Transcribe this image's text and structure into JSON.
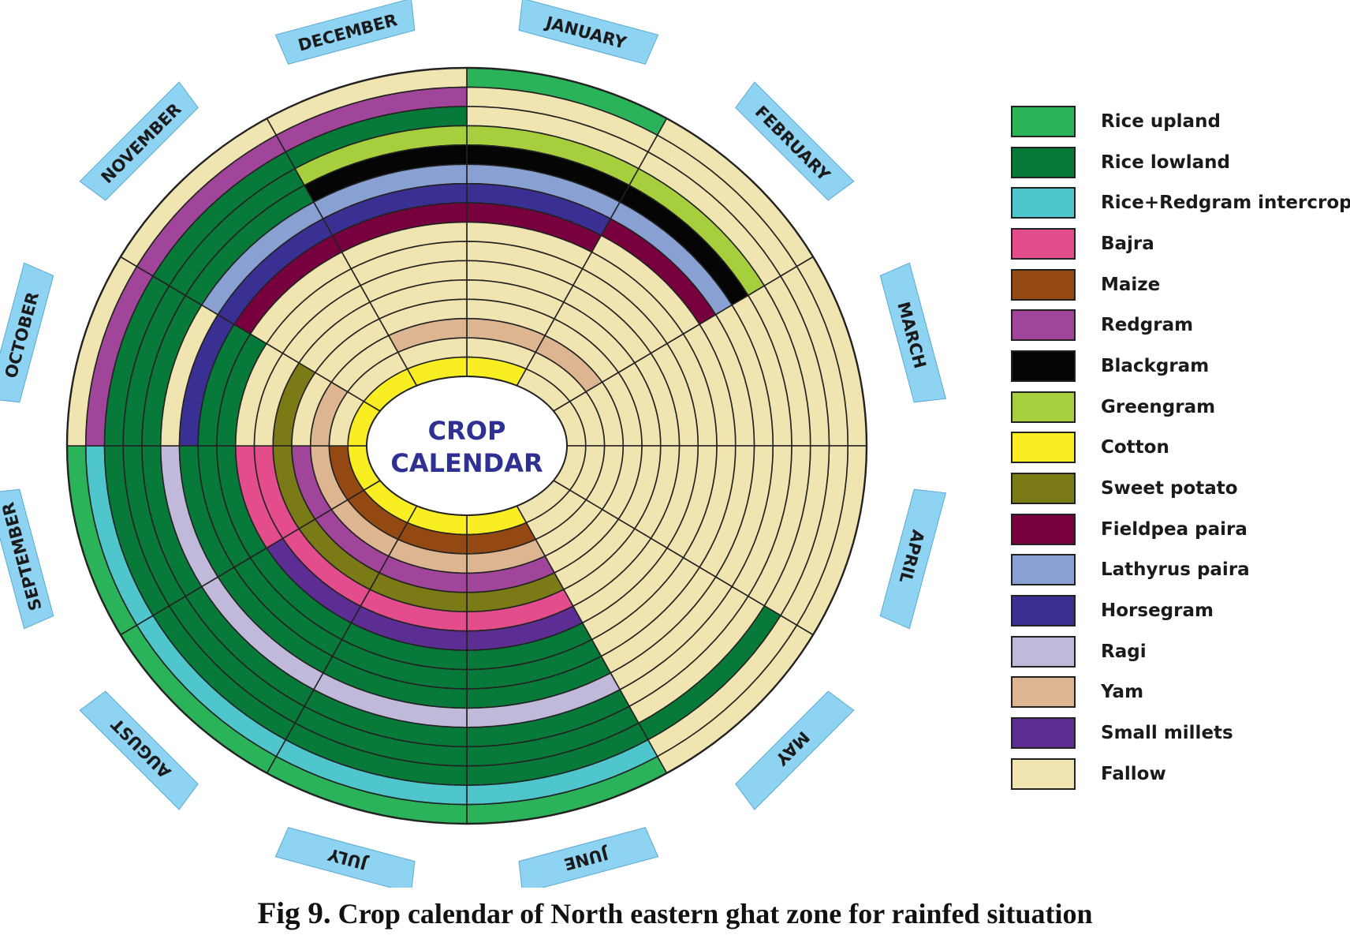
{
  "center": {
    "line1": "CROP",
    "line2": "CALENDAR",
    "color": "#2E3192"
  },
  "months": [
    "JANUARY",
    "FEBRUARY",
    "MARCH",
    "APRIL",
    "MAY",
    "JUNE",
    "JULY",
    "AUGUST",
    "SEPTEMBER",
    "OCTOBER",
    "NOVEMBER",
    "DECEMBER"
  ],
  "month_tab_color": "#8FD3F2",
  "legend": [
    {
      "key": "RU",
      "label": "Rice upland",
      "color": "#2BB35A"
    },
    {
      "key": "RL",
      "label": "Rice lowland",
      "color": "#077A3A"
    },
    {
      "key": "RR",
      "label": "Rice+Redgram intercrop",
      "color": "#4FC6CC"
    },
    {
      "key": "BJ",
      "label": "Bajra",
      "color": "#E34D8C"
    },
    {
      "key": "MZ",
      "label": "Maize",
      "color": "#944913"
    },
    {
      "key": "RG",
      "label": "Redgram",
      "color": "#A04599"
    },
    {
      "key": "BG",
      "label": "Blackgram",
      "color": "#050505"
    },
    {
      "key": "GG",
      "label": "Greengram",
      "color": "#A7CE3C"
    },
    {
      "key": "CT",
      "label": "Cotton",
      "color": "#F8EE22"
    },
    {
      "key": "SP",
      "label": "Sweet potato",
      "color": "#7A7A17"
    },
    {
      "key": "FP",
      "label": "Fieldpea paira",
      "color": "#79003F"
    },
    {
      "key": "LP",
      "label": "Lathyrus paira",
      "color": "#89A0D3"
    },
    {
      "key": "HG",
      "label": "Horsegram",
      "color": "#3A2F92"
    },
    {
      "key": "RA",
      "label": "Ragi",
      "color": "#C1B9DA"
    },
    {
      "key": "YM",
      "label": "Yam",
      "color": "#DDB590"
    },
    {
      "key": "SM",
      "label": "Small millets",
      "color": "#5C2D92"
    },
    {
      "key": "FA",
      "label": "Fallow",
      "color": "#F0E4B0"
    }
  ],
  "rings_outer_to_inner": [
    {
      "months": [
        "RU",
        "FA",
        "FA",
        "FA",
        "FA",
        "RU",
        "RU",
        "RU",
        "RU",
        "FA",
        "FA",
        "FA"
      ]
    },
    {
      "months": [
        "FA",
        "FA",
        "FA",
        "FA",
        "FA",
        "RR",
        "RR",
        "RR",
        "RR",
        "RG",
        "RG",
        "RG"
      ]
    },
    {
      "months": [
        "FA",
        "FA",
        "FA",
        "FA",
        "RL",
        "RL",
        "RL",
        "RL",
        "RL",
        "RL",
        "RL",
        "RL"
      ]
    },
    {
      "months": [
        "GG",
        "GG",
        "FA",
        "FA",
        "FA",
        "RL",
        "RL",
        "RL",
        "RL",
        "RL",
        "RL",
        "GG"
      ]
    },
    {
      "months": [
        "BG",
        "BG",
        "FA",
        "FA",
        "FA",
        "RL",
        "RL",
        "RL",
        "RL",
        "RL",
        "RL",
        "BG"
      ]
    },
    {
      "months": [
        "LP",
        "LP",
        "FA",
        "FA",
        "FA",
        "RA",
        "RA",
        "RA",
        "RA",
        "FA",
        "LP",
        "LP"
      ]
    },
    {
      "months": [
        "HG",
        "FP",
        "FA",
        "FA",
        "FA",
        "RL",
        "RL",
        "RL",
        "RL",
        "HG",
        "HG",
        "HG"
      ]
    },
    {
      "months": [
        "FP",
        "FA",
        "FA",
        "FA",
        "FA",
        "RL",
        "RL",
        "RL",
        "RL",
        "RL",
        "FP",
        "FP"
      ]
    },
    {
      "months": [
        "FA",
        "FA",
        "FA",
        "FA",
        "FA",
        "RL",
        "RL",
        "RL",
        "RL",
        "RL",
        "FA",
        "FA"
      ]
    },
    {
      "months": [
        "FA",
        "FA",
        "FA",
        "FA",
        "FA",
        "SM",
        "SM",
        "SM",
        "BJ",
        "FA",
        "FA",
        "FA"
      ]
    },
    {
      "months": [
        "FA",
        "FA",
        "FA",
        "FA",
        "FA",
        "BJ",
        "BJ",
        "BJ",
        "BJ",
        "FA",
        "FA",
        "FA"
      ]
    },
    {
      "months": [
        "FA",
        "FA",
        "FA",
        "FA",
        "FA",
        "SP",
        "SP",
        "SP",
        "SP",
        "SP",
        "FA",
        "FA"
      ]
    },
    {
      "months": [
        "FA",
        "FA",
        "FA",
        "FA",
        "FA",
        "RG",
        "RG",
        "RG",
        "RG",
        "FA",
        "FA",
        "FA"
      ]
    },
    {
      "months": [
        "YM",
        "YM",
        "FA",
        "FA",
        "FA",
        "YM",
        "YM",
        "YM",
        "YM",
        "YM",
        "FA",
        "YM"
      ]
    },
    {
      "months": [
        "FA",
        "FA",
        "FA",
        "FA",
        "FA",
        "MZ",
        "MZ",
        "MZ",
        "MZ",
        "FA",
        "FA",
        "FA"
      ]
    },
    {
      "months": [
        "CT",
        "FA",
        "FA",
        "FA",
        "FA",
        "CT",
        "CT",
        "CT",
        "CT",
        "CT",
        "CT",
        "CT"
      ]
    }
  ],
  "caption": {
    "prefix": "Fig 9.",
    "text": " Crop calendar of North eastern ghat zone for rainfed situation"
  }
}
